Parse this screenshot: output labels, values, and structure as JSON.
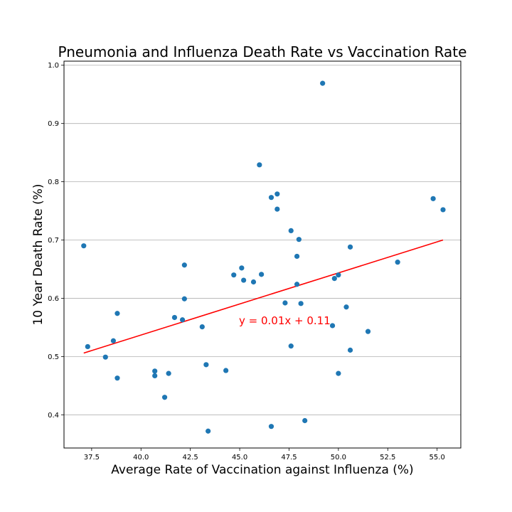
{
  "chart_data": {
    "type": "scatter",
    "title": "Pneumonia and Influenza Death Rate vs Vaccination Rate",
    "xlabel": "Average Rate of Vaccination against Influenza (%)",
    "ylabel": "10 Year Death Rate (%)",
    "xlim": [
      36.1,
      56.2
    ],
    "ylim": [
      0.343,
      1.007
    ],
    "xticks": [
      "37.5",
      "40.0",
      "42.5",
      "45.0",
      "47.5",
      "50.0",
      "52.5",
      "55.0"
    ],
    "yticks": [
      "0.4",
      "0.5",
      "0.6",
      "0.7",
      "0.8",
      "0.9",
      "1.0"
    ],
    "grid": "horizontal",
    "point_color": "#1f77b4",
    "line_color": "#ff0000",
    "annotation": "y = 0.01x + 0.11",
    "points": [
      [
        37.1,
        0.69
      ],
      [
        37.3,
        0.517
      ],
      [
        38.2,
        0.499
      ],
      [
        38.6,
        0.527
      ],
      [
        38.8,
        0.574
      ],
      [
        38.8,
        0.463
      ],
      [
        40.7,
        0.475
      ],
      [
        40.7,
        0.467
      ],
      [
        41.2,
        0.43
      ],
      [
        41.4,
        0.471
      ],
      [
        41.7,
        0.567
      ],
      [
        42.1,
        0.563
      ],
      [
        42.2,
        0.657
      ],
      [
        42.2,
        0.599
      ],
      [
        43.1,
        0.551
      ],
      [
        43.3,
        0.486
      ],
      [
        43.4,
        0.372
      ],
      [
        44.3,
        0.476
      ],
      [
        44.7,
        0.64
      ],
      [
        45.1,
        0.652
      ],
      [
        45.2,
        0.631
      ],
      [
        45.7,
        0.628
      ],
      [
        46.0,
        0.829
      ],
      [
        46.1,
        0.641
      ],
      [
        46.6,
        0.773
      ],
      [
        46.6,
        0.38
      ],
      [
        46.9,
        0.779
      ],
      [
        46.9,
        0.753
      ],
      [
        47.3,
        0.592
      ],
      [
        47.6,
        0.716
      ],
      [
        47.6,
        0.518
      ],
      [
        47.9,
        0.672
      ],
      [
        47.9,
        0.624
      ],
      [
        48.0,
        0.701
      ],
      [
        48.1,
        0.591
      ],
      [
        48.3,
        0.39
      ],
      [
        49.2,
        0.969
      ],
      [
        49.7,
        0.553
      ],
      [
        49.8,
        0.634
      ],
      [
        50.0,
        0.64
      ],
      [
        50.0,
        0.471
      ],
      [
        50.4,
        0.585
      ],
      [
        50.6,
        0.688
      ],
      [
        50.6,
        0.511
      ],
      [
        51.5,
        0.543
      ],
      [
        53.0,
        0.662
      ],
      [
        54.8,
        0.771
      ],
      [
        55.3,
        0.752
      ]
    ],
    "regression": {
      "x": [
        37.1,
        55.3
      ],
      "y": [
        0.506,
        0.7
      ]
    }
  }
}
